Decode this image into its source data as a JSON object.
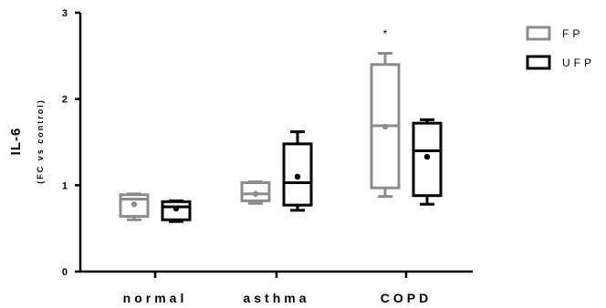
{
  "chart_data": {
    "type": "box",
    "ylabel": "IL-6",
    "ylabel_sub": "(FC vs control)",
    "xlabel": "",
    "ylim": [
      0,
      3
    ],
    "yticks": [
      "0",
      "1",
      "2",
      "3"
    ],
    "categories": [
      "normal",
      "asthma",
      "COPD"
    ],
    "series": [
      {
        "name": "FP",
        "color": "#8c8c8c",
        "boxes": [
          {
            "min": 0.6,
            "q1": 0.64,
            "median": 0.84,
            "q3": 0.89,
            "max": 0.9,
            "mean": 0.78
          },
          {
            "min": 0.79,
            "q1": 0.82,
            "median": 0.9,
            "q3": 1.03,
            "max": 1.04,
            "mean": 0.9
          },
          {
            "min": 0.87,
            "q1": 0.97,
            "median": 1.69,
            "q3": 2.4,
            "max": 2.53,
            "mean": 1.68
          }
        ]
      },
      {
        "name": "UFP",
        "color": "#000000",
        "boxes": [
          {
            "min": 0.58,
            "q1": 0.6,
            "median": 0.75,
            "q3": 0.81,
            "max": 0.82,
            "mean": 0.73
          },
          {
            "min": 0.71,
            "q1": 0.77,
            "median": 1.03,
            "q3": 1.48,
            "max": 1.62,
            "mean": 1.1
          },
          {
            "min": 0.78,
            "q1": 0.88,
            "median": 1.4,
            "q3": 1.72,
            "max": 1.76,
            "mean": 1.33
          }
        ]
      }
    ],
    "annotations": [
      {
        "text": "*",
        "category": "COPD",
        "series": "FP",
        "y": 2.78
      }
    ],
    "legend": {
      "position": "top-right"
    },
    "grid": false
  }
}
